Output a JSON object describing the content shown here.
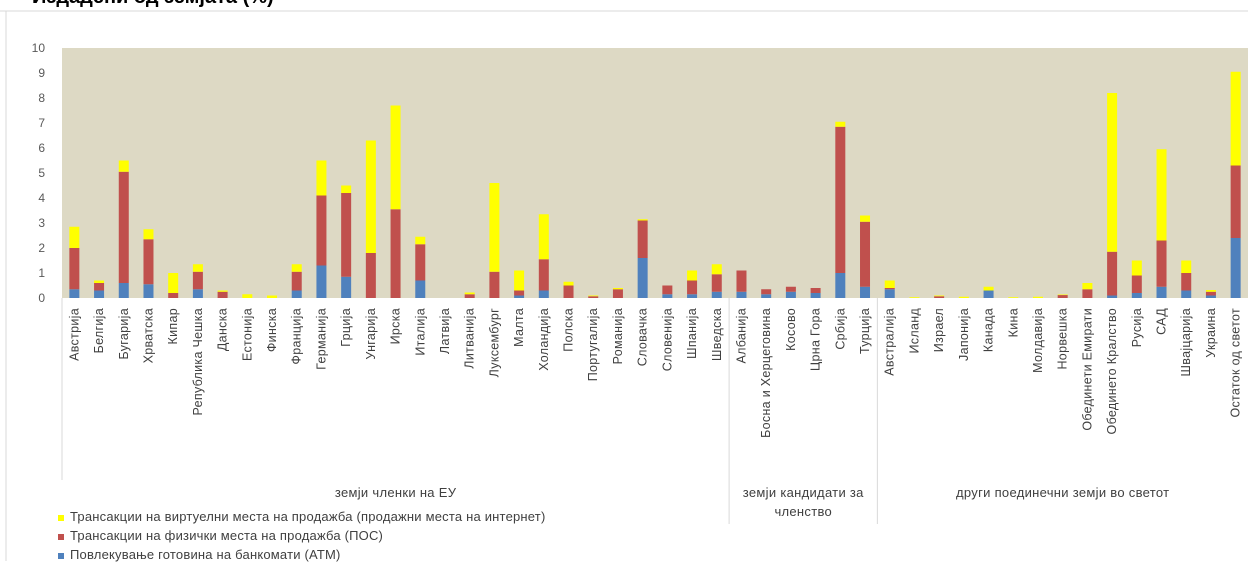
{
  "title": "Издадени од земјата (%)",
  "colors": {
    "plot_bg": "#ddd9c4",
    "atm": "#4f81bd",
    "pos": "#c0504d",
    "internet": "#ffff00"
  },
  "chart_data": {
    "type": "bar",
    "stacked": true,
    "ylim": [
      0,
      10
    ],
    "yticks": [
      "0",
      "1",
      "2",
      "3",
      "4",
      "5",
      "6",
      "7",
      "8",
      "9",
      "10"
    ],
    "grid": false,
    "legend_position": "bottom-left",
    "categories": [
      "Австрија",
      "Белгија",
      "Бугарија",
      "Хрватска",
      "Кипар",
      "Република Чешка",
      "Данска",
      "Естонија",
      "Финска",
      "Франција",
      "Германија",
      "Грција",
      "Унгарија",
      "Ирска",
      "Италија",
      "Латвија",
      "Литванија",
      "Луксембург",
      "Малта",
      "Холандија",
      "Полска",
      "Португалија",
      "Романија",
      "Словачка",
      "Словенија",
      "Шпанија",
      "Шведска",
      "Албанија",
      "Босна и Херцеговина",
      "Косово",
      "Црна Гора",
      "Србија",
      "Турција",
      "Австралија",
      "Исланд",
      "Израел",
      "Јапонија",
      "Канада",
      "Кина",
      "Молдавија",
      "Норвешка",
      "Обединети Емирати",
      "Обединето Кралство",
      "Русија",
      "САД",
      "Швајцарија",
      "Украина",
      "Остаток од светот"
    ],
    "groups": [
      {
        "label": "земји членки на ЕУ",
        "count": 27
      },
      {
        "label": "земји кандидати за членство",
        "count": 6
      },
      {
        "label": "други поединечни земји во светот",
        "count": 15
      }
    ],
    "series": [
      {
        "name": "Повлекување готовина на банкомати (АТМ)",
        "color": "#4f81bd",
        "values": [
          0.35,
          0.3,
          0.6,
          0.55,
          0.0,
          0.35,
          0.0,
          0.0,
          0.0,
          0.3,
          1.3,
          0.85,
          0.0,
          0.0,
          0.7,
          0.0,
          0.0,
          0.0,
          0.1,
          0.3,
          0.0,
          0.0,
          0.0,
          1.6,
          0.15,
          0.15,
          0.25,
          0.25,
          0.15,
          0.25,
          0.2,
          1.0,
          0.45,
          0.35,
          0.0,
          0.0,
          0.0,
          0.3,
          0.0,
          0.0,
          0.0,
          0.0,
          0.1,
          0.2,
          0.45,
          0.3,
          0.1,
          2.4
        ]
      },
      {
        "name": "Трансакции на физички места на продажба (ПОС)",
        "color": "#c0504d",
        "values": [
          1.65,
          0.3,
          4.45,
          1.8,
          0.2,
          0.7,
          0.25,
          0.0,
          0.0,
          0.75,
          2.8,
          3.35,
          1.8,
          3.55,
          1.45,
          0.0,
          0.15,
          1.05,
          0.2,
          1.25,
          0.5,
          0.07,
          0.35,
          1.5,
          0.35,
          0.55,
          0.7,
          0.85,
          0.2,
          0.2,
          0.2,
          5.85,
          2.6,
          0.05,
          0.0,
          0.07,
          0.0,
          0.0,
          0.0,
          0.0,
          0.12,
          0.35,
          1.75,
          0.7,
          1.85,
          0.7,
          0.15,
          2.9
        ]
      },
      {
        "name": "Трансакции на виртуелни места на продажба (продажни места на интернет)",
        "color": "#ffff00",
        "values": [
          0.85,
          0.1,
          0.45,
          0.4,
          0.8,
          0.3,
          0.05,
          0.15,
          0.1,
          0.3,
          1.4,
          0.3,
          4.5,
          4.15,
          0.3,
          0.0,
          0.07,
          3.55,
          0.8,
          1.8,
          0.15,
          0.03,
          0.05,
          0.05,
          0.0,
          0.4,
          0.4,
          0.0,
          0.0,
          0.0,
          0.0,
          0.2,
          0.25,
          0.3,
          0.03,
          0.03,
          0.05,
          0.15,
          0.03,
          0.05,
          0.02,
          0.25,
          6.35,
          0.6,
          3.65,
          0.5,
          0.07,
          3.75
        ]
      }
    ]
  }
}
